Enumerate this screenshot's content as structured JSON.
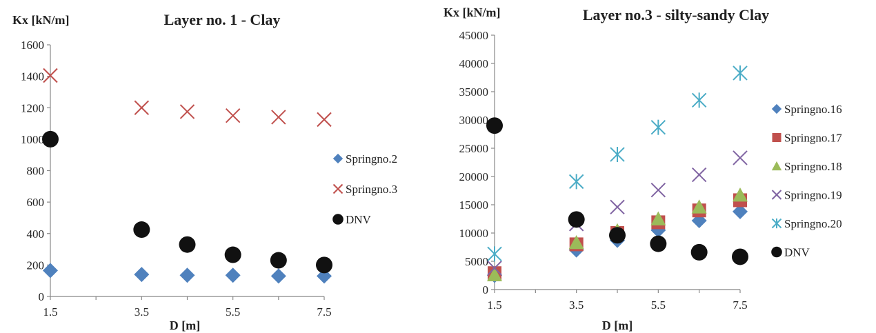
{
  "chart_data": [
    {
      "type": "scatter",
      "title": "Layer no. 1 - Clay",
      "ylabel": "Kx [kN/m]",
      "xlabel": "D [m]",
      "xlim": [
        1.5,
        7.5
      ],
      "xticks": [
        "1.5",
        "3.5",
        "5.5",
        "7.5"
      ],
      "ylim": [
        0,
        1600
      ],
      "yticks": [
        "0",
        "200",
        "400",
        "600",
        "800",
        "1000",
        "1200",
        "1400",
        "1600"
      ],
      "legend_position": "right",
      "series": [
        {
          "name": "Springno.2",
          "marker": "diamond",
          "color": "#4F81BD",
          "x": [
            1.5,
            3.5,
            4.5,
            5.5,
            6.5,
            7.5
          ],
          "y": [
            165,
            140,
            135,
            135,
            130,
            130
          ]
        },
        {
          "name": "Springno.3",
          "marker": "x",
          "color": "#C0504D",
          "x": [
            1.5,
            3.5,
            4.5,
            5.5,
            6.5,
            7.5
          ],
          "y": [
            1405,
            1200,
            1175,
            1150,
            1140,
            1125
          ]
        },
        {
          "name": "DNV",
          "marker": "circle",
          "color": "#111111",
          "x": [
            1.5,
            3.5,
            4.5,
            5.5,
            6.5,
            7.5
          ],
          "y": [
            1000,
            425,
            330,
            265,
            230,
            200
          ]
        }
      ]
    },
    {
      "type": "scatter",
      "title": "Layer no.3 - silty-sandy Clay",
      "ylabel": "Kx [kN/m]",
      "xlabel": "D [m]",
      "xlim": [
        1.5,
        7.5
      ],
      "xticks": [
        "1.5",
        "3.5",
        "5.5",
        "7.5"
      ],
      "ylim": [
        0,
        45000
      ],
      "yticks": [
        "0",
        "5000",
        "10000",
        "15000",
        "20000",
        "25000",
        "30000",
        "35000",
        "40000",
        "45000"
      ],
      "legend_position": "right",
      "series": [
        {
          "name": "Springno.16",
          "marker": "diamond",
          "color": "#4F81BD",
          "x": [
            1.5,
            3.5,
            4.5,
            5.5,
            6.5,
            7.5
          ],
          "y": [
            2500,
            7000,
            8700,
            10500,
            12200,
            13800
          ]
        },
        {
          "name": "Springno.17",
          "marker": "square",
          "color": "#C0504D",
          "x": [
            1.5,
            3.5,
            4.5,
            5.5,
            6.5,
            7.5
          ],
          "y": [
            2900,
            8000,
            10000,
            11900,
            14000,
            15800
          ]
        },
        {
          "name": "Springno.18",
          "marker": "triangle",
          "color": "#9BBB59",
          "x": [
            1.5,
            3.5,
            4.5,
            5.5,
            6.5,
            7.5
          ],
          "y": [
            2600,
            8300,
            10400,
            12500,
            14600,
            16700
          ]
        },
        {
          "name": "Springno.19",
          "marker": "x",
          "color": "#8064A2",
          "x": [
            1.5,
            3.5,
            4.5,
            5.5,
            6.5,
            7.5
          ],
          "y": [
            3800,
            11600,
            14600,
            17600,
            20300,
            23300
          ]
        },
        {
          "name": "Springno.20",
          "marker": "asterisk",
          "color": "#4BACC6",
          "x": [
            1.5,
            3.5,
            4.5,
            5.5,
            6.5,
            7.5
          ],
          "y": [
            6300,
            19100,
            23900,
            28700,
            33500,
            38300
          ]
        },
        {
          "name": "DNV",
          "marker": "circle",
          "color": "#111111",
          "x": [
            1.5,
            3.5,
            4.5,
            5.5,
            6.5,
            7.5
          ],
          "y": [
            29000,
            12400,
            9600,
            8100,
            6600,
            5800
          ]
        }
      ]
    }
  ]
}
